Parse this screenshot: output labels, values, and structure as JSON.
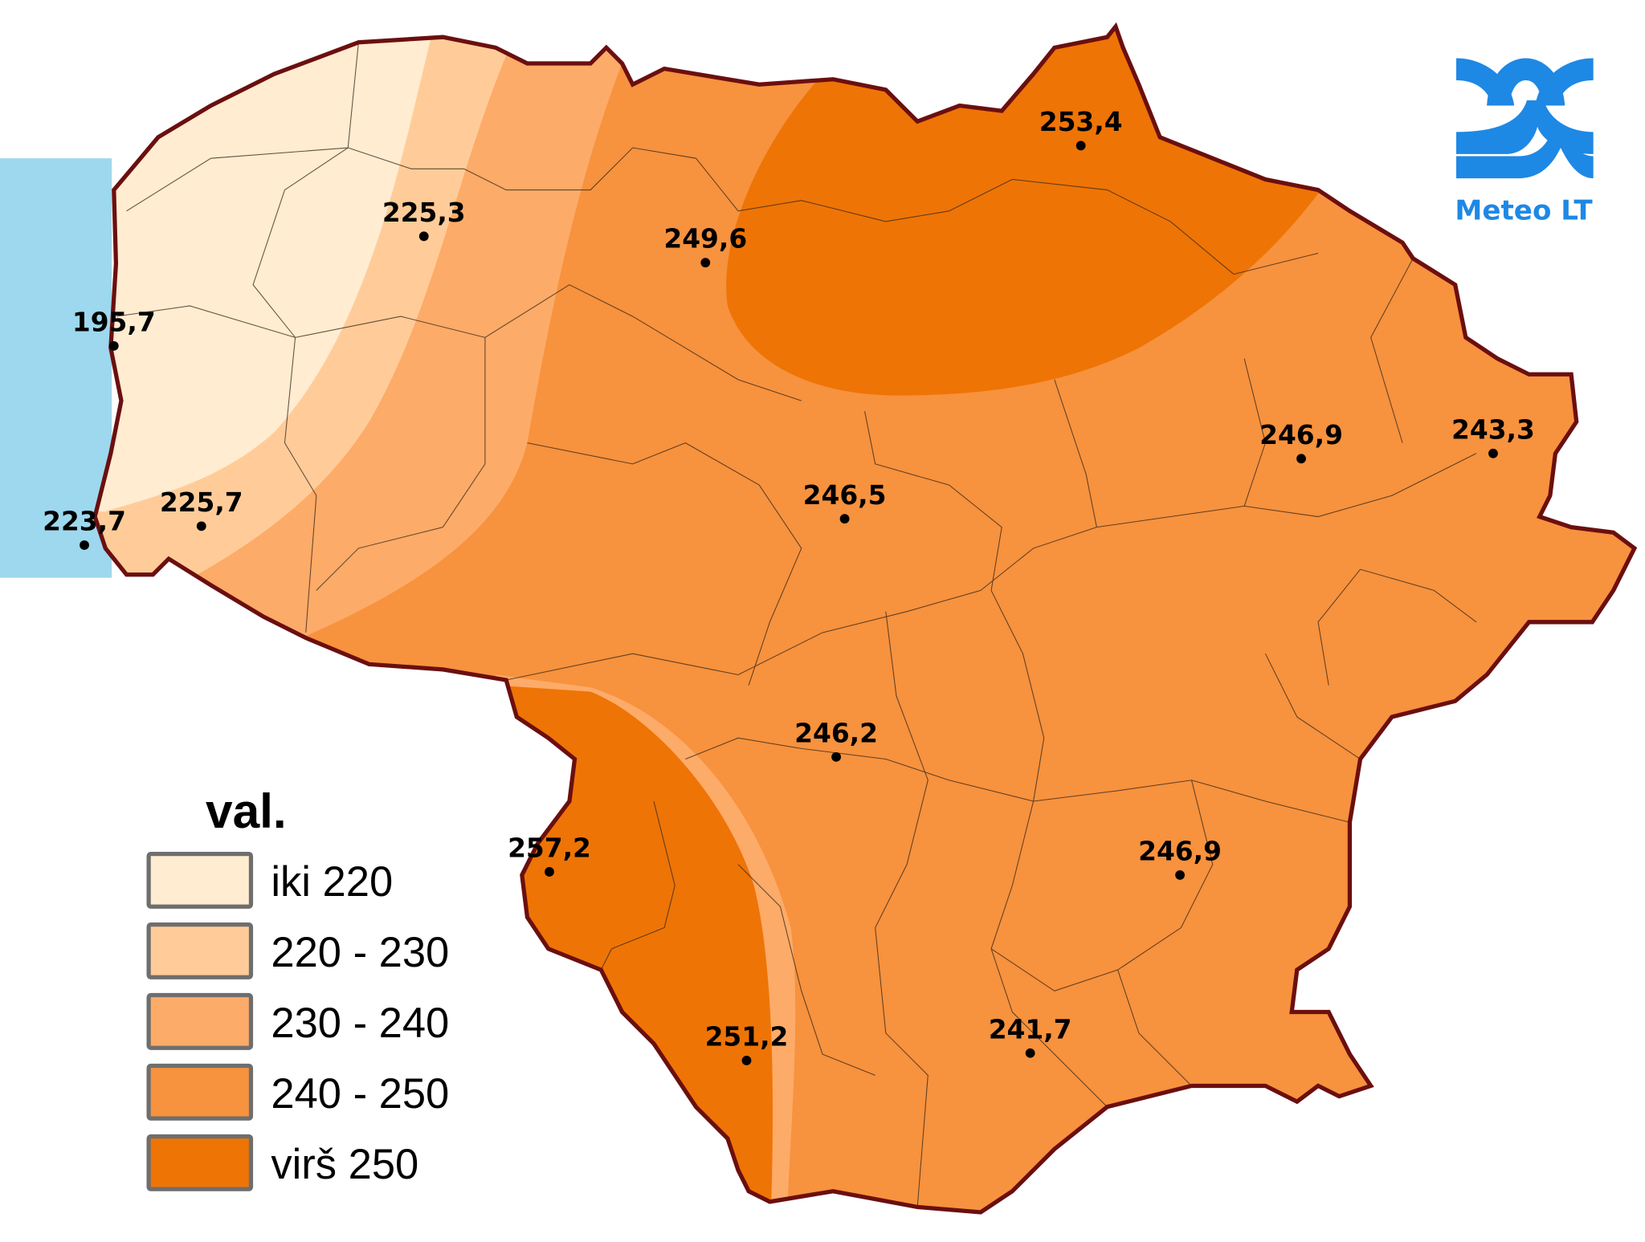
{
  "colors": {
    "sea": "#9dd8ee",
    "border": "#6b0f0f",
    "logo": "#1e88e5"
  },
  "legend": {
    "title": "val.",
    "classes": [
      {
        "label": "iki 220",
        "color": "#ffecd1"
      },
      {
        "label": "220 - 230",
        "color": "#ffcc99"
      },
      {
        "label": "230 - 240",
        "color": "#fdab68"
      },
      {
        "label": "240 - 250",
        "color": "#f7923e"
      },
      {
        "label": "virš 250",
        "color": "#ee7406"
      }
    ]
  },
  "logo": {
    "text": "Meteo LT",
    "icon": "meteo-lt-waves-logo"
  },
  "stations": [
    {
      "value": "225,3"
    },
    {
      "value": "249,6"
    },
    {
      "value": "253,4"
    },
    {
      "value": "195,7"
    },
    {
      "value": "223,7"
    },
    {
      "value": "225,7"
    },
    {
      "value": "246,9"
    },
    {
      "value": "243,3"
    },
    {
      "value": "246,5"
    },
    {
      "value": "246,2"
    },
    {
      "value": "257,2"
    },
    {
      "value": "246,9"
    },
    {
      "value": "251,2"
    },
    {
      "value": "241,7"
    }
  ]
}
